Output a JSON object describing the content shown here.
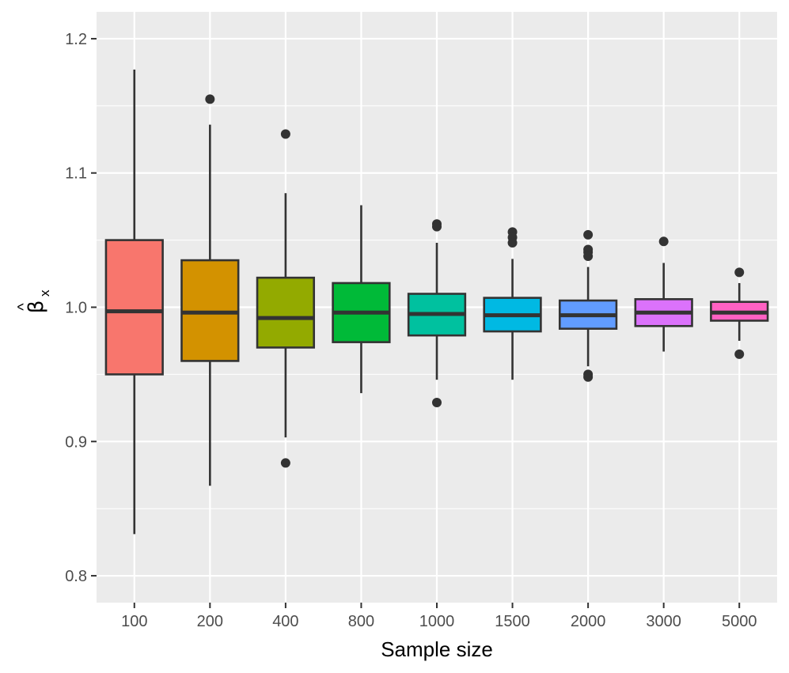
{
  "chart_data": {
    "type": "boxplot",
    "title": "",
    "xlabel": "Sample size",
    "ylabel_symbol": "β",
    "ylabel_hat": "^",
    "ylabel_subscript": "x",
    "ylim": [
      0.78,
      1.22
    ],
    "yticks": [
      0.8,
      0.9,
      1.0,
      1.1,
      1.2
    ],
    "ytick_labels": [
      "0.8",
      "0.9",
      "1.0",
      "1.1",
      "1.2"
    ],
    "grid": true,
    "legend": "none",
    "colors": {
      "panel_bg": "#ebebeb",
      "grid_major": "#ffffff",
      "box_border": "#333333",
      "tick_text": "#4d4d4d"
    },
    "categories": [
      "100",
      "200",
      "400",
      "800",
      "1000",
      "1500",
      "2000",
      "3000",
      "5000"
    ],
    "boxes": [
      {
        "label": "100",
        "color": "#F8766D",
        "whisker_low": 0.831,
        "q1": 0.95,
        "median": 0.997,
        "q3": 1.05,
        "whisker_high": 1.177,
        "outliers": []
      },
      {
        "label": "200",
        "color": "#D39200",
        "whisker_low": 0.867,
        "q1": 0.96,
        "median": 0.996,
        "q3": 1.035,
        "whisker_high": 1.136,
        "outliers": [
          1.155
        ]
      },
      {
        "label": "400",
        "color": "#93AA00",
        "whisker_low": 0.903,
        "q1": 0.97,
        "median": 0.992,
        "q3": 1.022,
        "whisker_high": 1.085,
        "outliers": [
          1.129,
          0.884
        ]
      },
      {
        "label": "800",
        "color": "#00BA38",
        "whisker_low": 0.936,
        "q1": 0.974,
        "median": 0.996,
        "q3": 1.018,
        "whisker_high": 1.076,
        "outliers": []
      },
      {
        "label": "1000",
        "color": "#00C19F",
        "whisker_low": 0.946,
        "q1": 0.979,
        "median": 0.995,
        "q3": 1.01,
        "whisker_high": 1.048,
        "outliers": [
          1.062,
          1.06,
          0.929
        ]
      },
      {
        "label": "1500",
        "color": "#00B9E3",
        "whisker_low": 0.946,
        "q1": 0.982,
        "median": 0.994,
        "q3": 1.007,
        "whisker_high": 1.036,
        "outliers": [
          1.056,
          1.052,
          1.048
        ]
      },
      {
        "label": "2000",
        "color": "#619CFF",
        "whisker_low": 0.956,
        "q1": 0.984,
        "median": 0.994,
        "q3": 1.005,
        "whisker_high": 1.03,
        "outliers": [
          1.054,
          1.043,
          1.041,
          1.038,
          0.95,
          0.948
        ]
      },
      {
        "label": "3000",
        "color": "#DB72FB",
        "whisker_low": 0.967,
        "q1": 0.986,
        "median": 0.996,
        "q3": 1.006,
        "whisker_high": 1.033,
        "outliers": [
          1.049
        ]
      },
      {
        "label": "5000",
        "color": "#FF61C3",
        "whisker_low": 0.975,
        "q1": 0.99,
        "median": 0.996,
        "q3": 1.004,
        "whisker_high": 1.018,
        "outliers": [
          1.026,
          0.965
        ]
      }
    ]
  }
}
